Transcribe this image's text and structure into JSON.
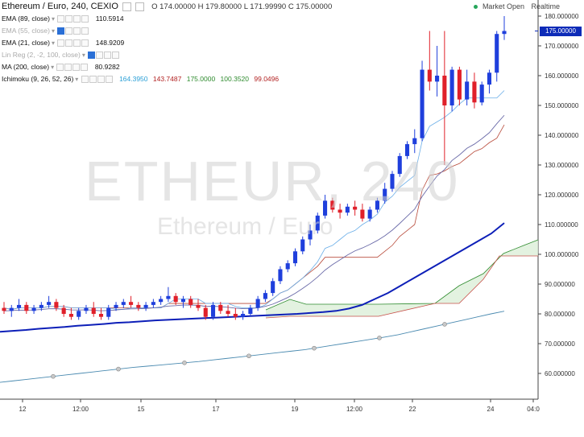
{
  "header": {
    "symbol": "Ethereum / Euro, 240, CEXIO",
    "ohlc": "O 174.00000  H 179.80000  L 171.99990  C 175.00000",
    "market_status": "Market Open",
    "realtime": "Realtime"
  },
  "indicators": [
    {
      "label": "EMA (89, close)",
      "value": "110.5914",
      "color": "#111111"
    },
    {
      "label": "EMA (55, close)",
      "value": "",
      "color": "#aaaaaa"
    },
    {
      "label": "EMA (21, close)",
      "value": "148.9209",
      "color": "#111111"
    },
    {
      "label": "Lin Reg (2, -2, 100, close)",
      "value": "",
      "color": "#aaaaaa"
    },
    {
      "label": "MA (200, close)",
      "value": "80.9282",
      "color": "#111111"
    },
    {
      "label": "Ichimoku (9, 26, 52, 26)",
      "value": "",
      "color": "#111111"
    }
  ],
  "ichimoku_values": [
    {
      "value": "164.3950",
      "color": "#2a9fd6"
    },
    {
      "value": "143.7487",
      "color": "#b22222"
    },
    {
      "value": "175.0000",
      "color": "#2e8b2e"
    },
    {
      "value": "100.3520",
      "color": "#2e8b2e"
    },
    {
      "value": "99.0496",
      "color": "#b22222"
    }
  ],
  "watermark": {
    "ticker": "ETHEUR, 240",
    "name": "Ethereum / Euro"
  },
  "current_price_label": "175.00000",
  "colors": {
    "up": "#1f3fdc",
    "down": "#e0202a",
    "ema89": "#0d1fb8",
    "ema21": "#6a6aa8",
    "tenkan": "#6aaee8",
    "kijun": "#b84a3a",
    "cloud_fill": "#dcefd8",
    "senkou_a": "#2e8b2e",
    "senkou_b": "#c8504a",
    "ma200": "#4a8ab0"
  },
  "chart_data": {
    "type": "candlestick",
    "y_axis": {
      "min": 55,
      "max": 183,
      "ticks": [
        60,
        70,
        80,
        90,
        100,
        110,
        120,
        130,
        140,
        150,
        160,
        170,
        180
      ]
    },
    "x_tick_labels": [
      "12",
      "12:00",
      "15",
      "17",
      "19",
      "12:00",
      "22",
      "24",
      "04:0"
    ],
    "candles": [
      [
        82,
        84,
        80,
        81
      ],
      [
        81,
        83,
        79,
        82
      ],
      [
        82,
        85,
        81,
        83
      ],
      [
        83,
        84,
        80,
        81
      ],
      [
        81,
        83,
        80,
        82
      ],
      [
        82,
        84,
        81,
        83
      ],
      [
        83,
        86,
        82,
        84
      ],
      [
        84,
        85,
        81,
        82
      ],
      [
        82,
        83,
        79,
        80
      ],
      [
        80,
        82,
        78,
        79
      ],
      [
        79,
        82,
        78,
        81
      ],
      [
        81,
        83,
        80,
        82
      ],
      [
        82,
        84,
        79,
        80
      ],
      [
        80,
        82,
        78,
        79
      ],
      [
        79,
        83,
        78,
        82
      ],
      [
        82,
        84,
        81,
        83
      ],
      [
        83,
        85,
        82,
        84
      ],
      [
        84,
        86,
        82,
        83
      ],
      [
        83,
        84,
        81,
        82
      ],
      [
        82,
        84,
        81,
        83
      ],
      [
        83,
        85,
        82,
        84
      ],
      [
        84,
        86,
        83,
        85
      ],
      [
        85,
        89,
        84,
        86
      ],
      [
        86,
        87,
        83,
        84
      ],
      [
        84,
        86,
        82,
        85
      ],
      [
        85,
        86,
        82,
        83
      ],
      [
        83,
        85,
        81,
        82
      ],
      [
        82,
        83,
        78,
        79
      ],
      [
        79,
        84,
        78,
        83
      ],
      [
        83,
        84,
        80,
        81
      ],
      [
        81,
        83,
        79,
        80
      ],
      [
        80,
        82,
        78,
        79
      ],
      [
        79,
        81,
        78,
        80
      ],
      [
        80,
        83,
        79,
        82
      ],
      [
        82,
        86,
        81,
        85
      ],
      [
        85,
        88,
        84,
        87
      ],
      [
        87,
        92,
        86,
        91
      ],
      [
        91,
        96,
        90,
        95
      ],
      [
        95,
        98,
        94,
        97
      ],
      [
        97,
        102,
        96,
        101
      ],
      [
        101,
        106,
        100,
        105
      ],
      [
        105,
        110,
        103,
        108
      ],
      [
        108,
        114,
        107,
        113
      ],
      [
        113,
        120,
        112,
        118
      ],
      [
        118,
        119,
        114,
        115
      ],
      [
        115,
        117,
        112,
        114
      ],
      [
        114,
        117,
        113,
        116
      ],
      [
        116,
        118,
        113,
        115
      ],
      [
        115,
        117,
        111,
        112
      ],
      [
        112,
        116,
        111,
        115
      ],
      [
        115,
        119,
        114,
        118
      ],
      [
        118,
        124,
        117,
        122
      ],
      [
        122,
        128,
        121,
        127
      ],
      [
        127,
        134,
        126,
        133
      ],
      [
        133,
        138,
        132,
        137
      ],
      [
        137,
        142,
        134,
        139
      ],
      [
        139,
        165,
        138,
        162
      ],
      [
        162,
        175,
        155,
        158
      ],
      [
        158,
        170,
        153,
        160
      ],
      [
        160,
        175,
        130,
        150
      ],
      [
        150,
        163,
        148,
        162
      ],
      [
        162,
        163,
        150,
        152
      ],
      [
        152,
        162,
        150,
        158
      ],
      [
        158,
        161,
        149,
        151
      ],
      [
        151,
        158,
        150,
        157
      ],
      [
        157,
        162,
        154,
        161
      ],
      [
        161,
        175,
        158,
        174
      ],
      [
        174,
        180,
        172,
        175
      ]
    ],
    "series": [
      {
        "name": "EMA (89, close)",
        "values": [
          74,
          74.3,
          74.6,
          75,
          75.3,
          75.6,
          76,
          76.3,
          76.6,
          77,
          77.2,
          77.5,
          77.8,
          78,
          78.2,
          78.4,
          78.6,
          78.8,
          79,
          79.2,
          79.4,
          79.6,
          79.8,
          80,
          80.3,
          80.6,
          81,
          81.8,
          83,
          85,
          87,
          89.5,
          92,
          94.5,
          97,
          99.5,
          102,
          104.5,
          107,
          110.5
        ]
      },
      {
        "name": "MA (200, close)",
        "values": [
          57,
          57.5,
          58,
          58.5,
          59,
          59.5,
          60,
          60.5,
          61,
          61.5,
          62,
          62.4,
          62.8,
          63.2,
          63.6,
          64,
          64.5,
          65,
          65.5,
          66,
          66.5,
          67,
          67.5,
          68,
          68.7,
          69.4,
          70.1,
          70.8,
          71.5,
          72.2,
          73,
          74,
          75,
          76,
          77,
          78,
          79,
          80,
          80.9
        ]
      }
    ]
  }
}
